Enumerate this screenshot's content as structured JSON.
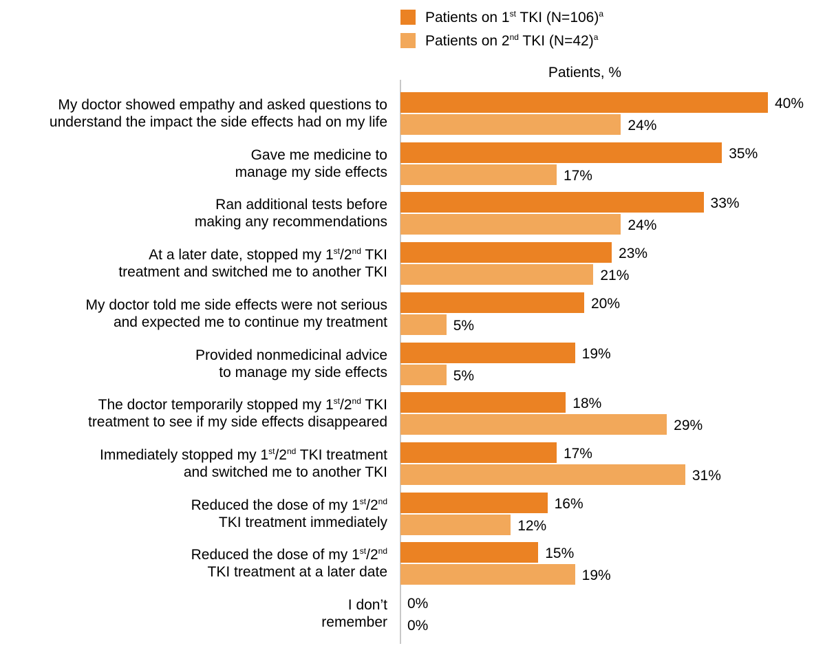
{
  "chart_data": {
    "type": "bar",
    "orientation": "horizontal",
    "xlabel": "Patients, %",
    "xlim": [
      0,
      40
    ],
    "grid": false,
    "legend_position": "top",
    "categories": [
      [
        "My doctor showed empathy and asked questions to",
        "understand the impact the side effects had on my life"
      ],
      [
        "Gave me medicine to",
        "manage my side effects"
      ],
      [
        "Ran additional tests before",
        "making any recommendations"
      ],
      [
        "At a later date, stopped my 1st/2nd TKI",
        "treatment and switched me to another TKI"
      ],
      [
        "My doctor told me side effects were not serious",
        "and expected me to continue my treatment"
      ],
      [
        "Provided nonmedicinal advice",
        "to manage my side effects"
      ],
      [
        "The doctor temporarily stopped my 1st/2nd TKI",
        "treatment to see if my side effects disappeared"
      ],
      [
        "Immediately stopped my 1st/2nd TKI treatment",
        "and switched me to another TKI"
      ],
      [
        "Reduced the dose of my 1st/2nd",
        "TKI treatment immediately"
      ],
      [
        "Reduced the dose of my 1st/2nd",
        "TKI treatment at a later date"
      ],
      [
        "I don’t",
        "remember"
      ]
    ],
    "series": [
      {
        "name": "Patients on 1st TKI (N=106)a",
        "color": "#eb8223",
        "values": [
          40,
          35,
          33,
          23,
          20,
          19,
          18,
          17,
          16,
          15,
          0
        ],
        "labels": [
          "40%",
          "35%",
          "33%",
          "23%",
          "20%",
          "19%",
          "18%",
          "17%",
          "16%",
          "15%",
          "0%"
        ]
      },
      {
        "name": "Patients on 2nd TKI (N=42)a",
        "color": "#f2a85a",
        "values": [
          24,
          17,
          24,
          21,
          5,
          5,
          29,
          31,
          12,
          19,
          0
        ],
        "labels": [
          "24%",
          "17%",
          "24%",
          "21%",
          "5%",
          "5%",
          "29%",
          "31%",
          "12%",
          "19%",
          "0%"
        ]
      }
    ]
  }
}
